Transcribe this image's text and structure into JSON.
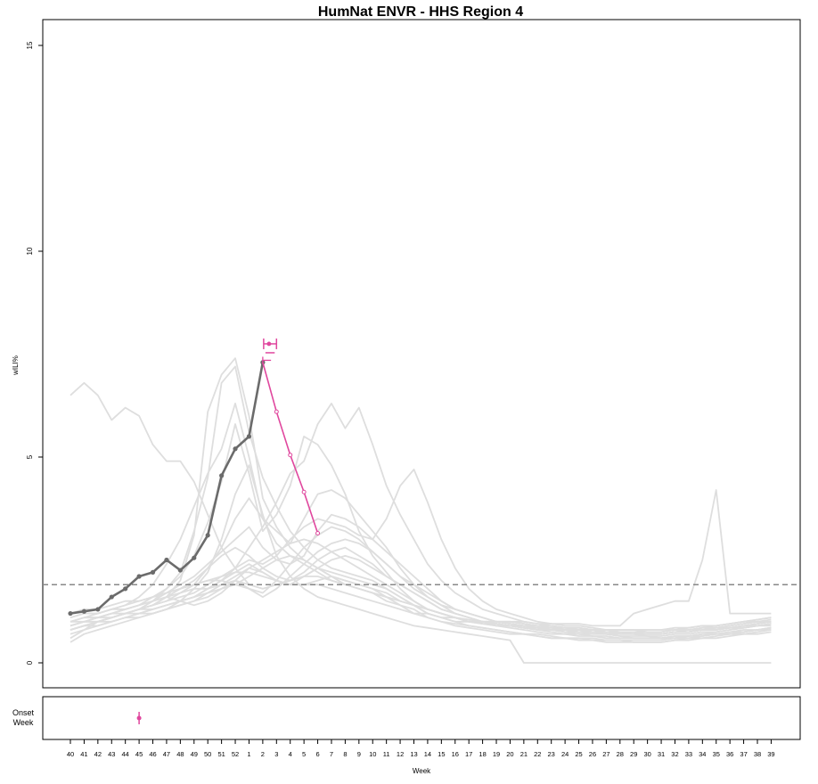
{
  "chart_data": {
    "type": "line",
    "title": "HumNat ENVR - HHS Region 4",
    "ylabel": "wILI%",
    "xlabel": "Week",
    "onset_label": [
      "Onset",
      "Week"
    ],
    "ylim": [
      0,
      15
    ],
    "yticks": [
      0,
      5,
      10,
      15
    ],
    "categories": [
      "40",
      "41",
      "42",
      "43",
      "44",
      "45",
      "46",
      "47",
      "48",
      "49",
      "50",
      "51",
      "52",
      "1",
      "2",
      "3",
      "4",
      "5",
      "6",
      "7",
      "8",
      "9",
      "10",
      "11",
      "12",
      "13",
      "14",
      "15",
      "16",
      "17",
      "18",
      "19",
      "20",
      "21",
      "22",
      "23",
      "24",
      "25",
      "26",
      "27",
      "28",
      "29",
      "30",
      "31",
      "32",
      "33",
      "34",
      "35",
      "36",
      "37",
      "38",
      "39"
    ],
    "baseline": 1.9,
    "colors": {
      "observed": "#6b6b6b",
      "forecast": "#e0479e",
      "history": "#dedede",
      "baseline": "#888888"
    },
    "observed": {
      "x": [
        "40",
        "41",
        "42",
        "43",
        "44",
        "45",
        "46",
        "47",
        "48",
        "49",
        "50",
        "51",
        "52",
        "1",
        "2"
      ],
      "values": [
        1.2,
        1.25,
        1.3,
        1.6,
        1.8,
        2.1,
        2.2,
        2.5,
        2.25,
        2.55,
        3.1,
        4.55,
        5.2,
        5.5,
        7.3
      ]
    },
    "forecast": {
      "x": [
        "2",
        "3",
        "4",
        "5",
        "6"
      ],
      "values": [
        7.3,
        6.1,
        5.05,
        4.15,
        3.15
      ]
    },
    "peak_height": {
      "x": "2",
      "value": 7.75,
      "x_low": "2",
      "x_high": "3"
    },
    "peak_week_interval": {
      "y": 7.35,
      "x_center": "2",
      "x_low": "2",
      "x_high": "2.6"
    },
    "onset_prediction": {
      "x": "45",
      "spread": 0.3
    },
    "history": [
      [
        6.5,
        6.8,
        6.5,
        5.9,
        6.2,
        6.0,
        5.3,
        4.9,
        4.9,
        4.4,
        3.6,
        2.8,
        2.3,
        1.9,
        1.8,
        1.9,
        2.0,
        2.1,
        2.3,
        2.2,
        2.1,
        2.0,
        1.9,
        1.8,
        1.6,
        1.4,
        1.2,
        1.1,
        1.0,
        1.0,
        0.95,
        0.9,
        0.9,
        0.85,
        0.8,
        0.8,
        0.75,
        0.7,
        0.7,
        0.7,
        0.65,
        0.6,
        0.6,
        0.6,
        0.6,
        0.65,
        0.7,
        0.75,
        0.8,
        0.85,
        0.9,
        0.95
      ],
      [
        0.6,
        0.8,
        1.0,
        1.1,
        1.2,
        1.3,
        1.5,
        1.8,
        2.2,
        3.2,
        4.5,
        6.8,
        7.2,
        5.6,
        4.5,
        3.8,
        3.2,
        2.8,
        2.5,
        2.3,
        2.2,
        2.1,
        2.0,
        1.8,
        1.6,
        1.4,
        1.2,
        1.1,
        1.0,
        0.9,
        0.85,
        0.8,
        0.75,
        0.7,
        0.65,
        0.6,
        0.6,
        0.55,
        0.55,
        0.5,
        0.5,
        0.5,
        0.5,
        0.5,
        0.55,
        0.55,
        0.6,
        0.6,
        0.65,
        0.7,
        0.7,
        0.75
      ],
      [
        0.8,
        0.9,
        1.0,
        1.1,
        1.2,
        1.3,
        1.4,
        1.6,
        2.0,
        3.1,
        6.1,
        7.0,
        7.4,
        6.0,
        4.0,
        3.3,
        2.8,
        2.5,
        2.3,
        2.1,
        2.0,
        1.9,
        1.8,
        1.6,
        1.4,
        1.3,
        1.1,
        1.0,
        0.9,
        0.85,
        0.8,
        0.75,
        0.7,
        0.7,
        0.65,
        0.6,
        0.6,
        0.6,
        0.55,
        0.55,
        0.55,
        0.5,
        0.5,
        0.5,
        0.55,
        0.6,
        0.6,
        0.65,
        0.7,
        0.7,
        0.75,
        0.8
      ],
      [
        1.0,
        1.1,
        1.2,
        1.3,
        1.4,
        1.6,
        1.9,
        2.4,
        3.0,
        3.8,
        4.6,
        5.2,
        6.3,
        5.0,
        3.5,
        2.9,
        2.6,
        2.4,
        2.2,
        2.0,
        1.9,
        1.8,
        1.7,
        1.5,
        1.4,
        1.2,
        1.1,
        1.0,
        0.95,
        0.9,
        0.85,
        0.8,
        0.75,
        0.7,
        0.7,
        0.65,
        0.6,
        0.6,
        0.6,
        0.55,
        0.55,
        0.55,
        0.55,
        0.55,
        0.6,
        0.6,
        0.65,
        0.7,
        0.7,
        0.75,
        0.8,
        0.85
      ],
      [
        0.9,
        1.0,
        1.1,
        1.2,
        1.3,
        1.4,
        1.6,
        1.8,
        2.1,
        2.6,
        3.4,
        4.4,
        5.8,
        4.6,
        3.2,
        3.6,
        4.3,
        5.5,
        5.3,
        4.8,
        4.1,
        3.2,
        2.6,
        2.2,
        1.8,
        1.5,
        1.3,
        1.2,
        1.1,
        1.0,
        0.95,
        0.9,
        0.85,
        0.8,
        0.75,
        0.7,
        0.7,
        0.65,
        0.65,
        0.6,
        0.6,
        0.6,
        0.6,
        0.6,
        0.65,
        0.65,
        0.7,
        0.7,
        0.75,
        0.8,
        0.8,
        0.85
      ],
      [
        0.8,
        0.9,
        1.0,
        1.1,
        1.2,
        1.3,
        1.4,
        1.5,
        1.7,
        1.9,
        2.3,
        2.8,
        3.5,
        4.0,
        3.5,
        3.2,
        2.9,
        3.5,
        4.1,
        4.2,
        4.0,
        3.6,
        3.2,
        2.8,
        2.3,
        1.9,
        1.6,
        1.4,
        1.2,
        1.1,
        1.0,
        0.95,
        0.9,
        0.85,
        0.8,
        0.75,
        0.7,
        0.7,
        0.65,
        0.65,
        0.6,
        0.6,
        0.6,
        0.6,
        0.6,
        0.65,
        0.65,
        0.7,
        0.7,
        0.75,
        0.8,
        0.85
      ],
      [
        0.7,
        0.8,
        0.9,
        1.0,
        1.1,
        1.2,
        1.3,
        1.4,
        1.5,
        1.6,
        1.8,
        2.0,
        2.3,
        2.8,
        3.3,
        3.9,
        4.6,
        4.9,
        5.8,
        6.3,
        5.7,
        6.2,
        5.3,
        4.3,
        3.6,
        3.0,
        2.4,
        2.0,
        1.7,
        1.5,
        1.3,
        1.2,
        1.1,
        1.0,
        0.95,
        0.9,
        0.85,
        0.8,
        0.8,
        0.75,
        0.7,
        0.7,
        0.7,
        0.7,
        0.75,
        0.75,
        0.8,
        0.8,
        0.85,
        0.9,
        0.95,
        1.0
      ],
      [
        1.0,
        1.1,
        1.1,
        1.2,
        1.3,
        1.4,
        1.5,
        1.7,
        1.9,
        2.1,
        2.4,
        2.7,
        3.0,
        3.3,
        2.8,
        2.5,
        2.4,
        2.6,
        3.2,
        3.6,
        3.5,
        3.3,
        3.0,
        2.7,
        2.4,
        2.1,
        1.8,
        1.5,
        1.3,
        1.2,
        1.1,
        1.0,
        1.0,
        0.95,
        0.9,
        0.85,
        0.85,
        0.8,
        0.8,
        0.75,
        0.75,
        0.75,
        0.7,
        0.7,
        0.75,
        0.8,
        0.8,
        0.85,
        0.9,
        0.95,
        1.0,
        1.0
      ],
      [
        0.9,
        1.0,
        1.1,
        1.2,
        1.2,
        1.3,
        1.4,
        1.5,
        1.6,
        1.7,
        1.9,
        2.1,
        2.3,
        2.5,
        2.4,
        2.6,
        3.0,
        3.3,
        3.5,
        3.4,
        3.3,
        3.1,
        3.0,
        3.5,
        4.3,
        4.7,
        3.9,
        3.0,
        2.3,
        1.8,
        1.5,
        1.3,
        1.2,
        1.1,
        1.0,
        0.95,
        0.9,
        0.9,
        0.85,
        0.8,
        0.8,
        0.8,
        0.75,
        0.75,
        0.8,
        0.8,
        0.85,
        0.9,
        0.95,
        1.0,
        1.05,
        1.1
      ],
      [
        1.1,
        1.2,
        1.2,
        1.3,
        1.4,
        1.5,
        1.6,
        1.7,
        1.8,
        1.9,
        2.0,
        2.0,
        1.9,
        1.8,
        1.7,
        2.0,
        2.4,
        2.8,
        3.1,
        3.3,
        3.2,
        3.0,
        2.7,
        2.4,
        2.1,
        1.8,
        1.6,
        1.4,
        1.3,
        1.2,
        1.1,
        1.0,
        1.0,
        0.95,
        0.9,
        0.9,
        0.85,
        0.85,
        0.8,
        0.8,
        0.8,
        0.8,
        0.8,
        0.8,
        0.8,
        0.85,
        0.9,
        0.9,
        0.95,
        1.0,
        1.05,
        1.1
      ],
      [
        1.0,
        1.1,
        1.1,
        1.2,
        1.3,
        1.4,
        1.5,
        1.6,
        1.5,
        1.4,
        1.5,
        1.7,
        2.0,
        2.3,
        2.2,
        2.0,
        1.9,
        2.1,
        2.3,
        2.5,
        2.6,
        2.5,
        2.3,
        2.1,
        1.9,
        1.7,
        1.5,
        1.3,
        1.2,
        1.1,
        1.0,
        0.95,
        0.9,
        0.85,
        0.8,
        0.8,
        0.75,
        0.75,
        0.7,
        0.7,
        0.65,
        0.65,
        0.65,
        0.6,
        0.65,
        0.65,
        0.7,
        0.7,
        0.75,
        0.75,
        0.8,
        0.8
      ],
      [
        0.8,
        0.9,
        1.0,
        1.0,
        1.1,
        1.2,
        1.2,
        1.3,
        1.4,
        1.5,
        1.6,
        1.8,
        2.0,
        1.8,
        1.6,
        1.8,
        2.1,
        2.4,
        2.7,
        2.9,
        3.0,
        2.9,
        2.7,
        2.4,
        2.1,
        1.9,
        1.7,
        1.5,
        1.3,
        1.2,
        1.1,
        1.0,
        0.95,
        0.9,
        0.85,
        0.8,
        0.8,
        0.75,
        0.75,
        0.7,
        0.7,
        0.7,
        0.65,
        0.65,
        0.7,
        0.7,
        0.75,
        0.75,
        0.8,
        0.85,
        0.9,
        0.9
      ],
      [
        1.1,
        1.2,
        1.2,
        1.3,
        1.3,
        1.4,
        1.5,
        1.6,
        1.7,
        1.8,
        1.8,
        1.9,
        2.0,
        1.9,
        1.8,
        1.9,
        2.0,
        2.1,
        2.1,
        2.0,
        1.9,
        1.8,
        1.7,
        1.6,
        1.5,
        1.4,
        1.3,
        1.2,
        1.1,
        1.0,
        1.0,
        0.9,
        0.9,
        0.85,
        0.85,
        0.8,
        0.8,
        0.8,
        0.75,
        0.75,
        0.75,
        0.7,
        0.7,
        0.7,
        0.75,
        0.75,
        0.8,
        0.8,
        0.85,
        0.85,
        0.9,
        0.95
      ],
      [
        0.5,
        0.7,
        0.8,
        0.9,
        1.0,
        1.1,
        1.2,
        1.3,
        1.5,
        1.8,
        2.2,
        3.0,
        4.1,
        4.8,
        3.6,
        2.6,
        2.1,
        1.8,
        1.6,
        1.5,
        1.4,
        1.3,
        1.2,
        1.1,
        1.0,
        0.9,
        0.85,
        0.8,
        0.75,
        0.7,
        0.65,
        0.6,
        0.55,
        0.0,
        0.0,
        0.0,
        0.0,
        0.0,
        0.0,
        0.0,
        0.0,
        0.0,
        0.0,
        0.0,
        0.0,
        0.0,
        0.0,
        0.0,
        0.0,
        0.0,
        0.0,
        0.0
      ],
      [
        0.9,
        1.0,
        1.0,
        1.1,
        1.2,
        1.3,
        1.4,
        1.6,
        1.8,
        2.0,
        2.3,
        2.6,
        2.8,
        2.6,
        2.3,
        2.1,
        2.0,
        2.2,
        2.5,
        2.7,
        2.8,
        2.6,
        2.4,
        2.1,
        1.9,
        1.7,
        1.5,
        1.3,
        1.2,
        1.1,
        1.0,
        1.0,
        0.95,
        0.9,
        0.85,
        0.85,
        0.8,
        0.8,
        0.75,
        0.75,
        0.75,
        0.7,
        0.7,
        0.7,
        0.75,
        0.75,
        0.8,
        0.85,
        0.85,
        0.9,
        0.95,
        1.0
      ],
      [
        1.0,
        1.0,
        1.1,
        1.1,
        1.2,
        1.3,
        1.3,
        1.4,
        1.5,
        1.6,
        1.7,
        1.8,
        1.9,
        2.1,
        2.3,
        2.5,
        2.6,
        2.5,
        2.3,
        2.1,
        1.9,
        1.8,
        1.7,
        1.6,
        1.5,
        1.4,
        1.3,
        1.2,
        1.1,
        1.05,
        1.0,
        1.0,
        0.95,
        0.9,
        0.9,
        0.85,
        0.85,
        0.85,
        0.8,
        0.8,
        0.8,
        0.8,
        0.8,
        0.8,
        0.85,
        0.85,
        0.9,
        0.9,
        0.95,
        1.0,
        1.0,
        1.05
      ],
      [
        0.9,
        1.0,
        1.0,
        1.1,
        1.2,
        1.2,
        1.3,
        1.4,
        1.5,
        1.6,
        1.8,
        2.0,
        2.2,
        2.4,
        2.2,
        2.0,
        1.9,
        1.9,
        2.0,
        2.1,
        2.0,
        1.9,
        1.8,
        1.7,
        1.5,
        1.4,
        1.3,
        1.2,
        1.1,
        1.0,
        1.0,
        0.95,
        0.9,
        0.9,
        0.85,
        0.85,
        0.8,
        0.8,
        0.8,
        0.8,
        0.75,
        0.75,
        0.75,
        0.75,
        0.8,
        0.8,
        0.85,
        0.85,
        0.9,
        0.95,
        1.0,
        1.0
      ],
      [
        0.8,
        0.9,
        0.9,
        1.0,
        1.1,
        1.1,
        1.2,
        1.3,
        1.4,
        1.5,
        1.7,
        1.9,
        2.1,
        2.3,
        2.5,
        2.7,
        2.9,
        3.0,
        2.9,
        2.7,
        2.5,
        2.3,
        2.1,
        1.9,
        1.7,
        1.5,
        1.3,
        1.2,
        1.1,
        1.0,
        1.0,
        0.95,
        0.9,
        0.85,
        0.85,
        0.8,
        0.8,
        0.75,
        0.75,
        0.75,
        0.7,
        0.7,
        0.7,
        0.7,
        0.75,
        0.75,
        0.8,
        0.8,
        0.85,
        0.9,
        0.9,
        0.95
      ],
      [
        1.2,
        1.3,
        1.3,
        1.4,
        1.5,
        1.5,
        1.6,
        1.7,
        1.8,
        1.9,
        2.0,
        2.1,
        2.2,
        2.2,
        2.1,
        2.0,
        1.9,
        1.9,
        1.9,
        1.8,
        1.7,
        1.6,
        1.5,
        1.4,
        1.3,
        1.2,
        1.2,
        1.1,
        1.1,
        1.0,
        1.0,
        1.0,
        1.0,
        1.0,
        0.95,
        0.95,
        0.95,
        0.95,
        0.9,
        0.9,
        0.9,
        1.2,
        1.3,
        1.4,
        1.5,
        1.5,
        2.5,
        4.2,
        1.2,
        1.2,
        1.2,
        1.2
      ]
    ]
  }
}
